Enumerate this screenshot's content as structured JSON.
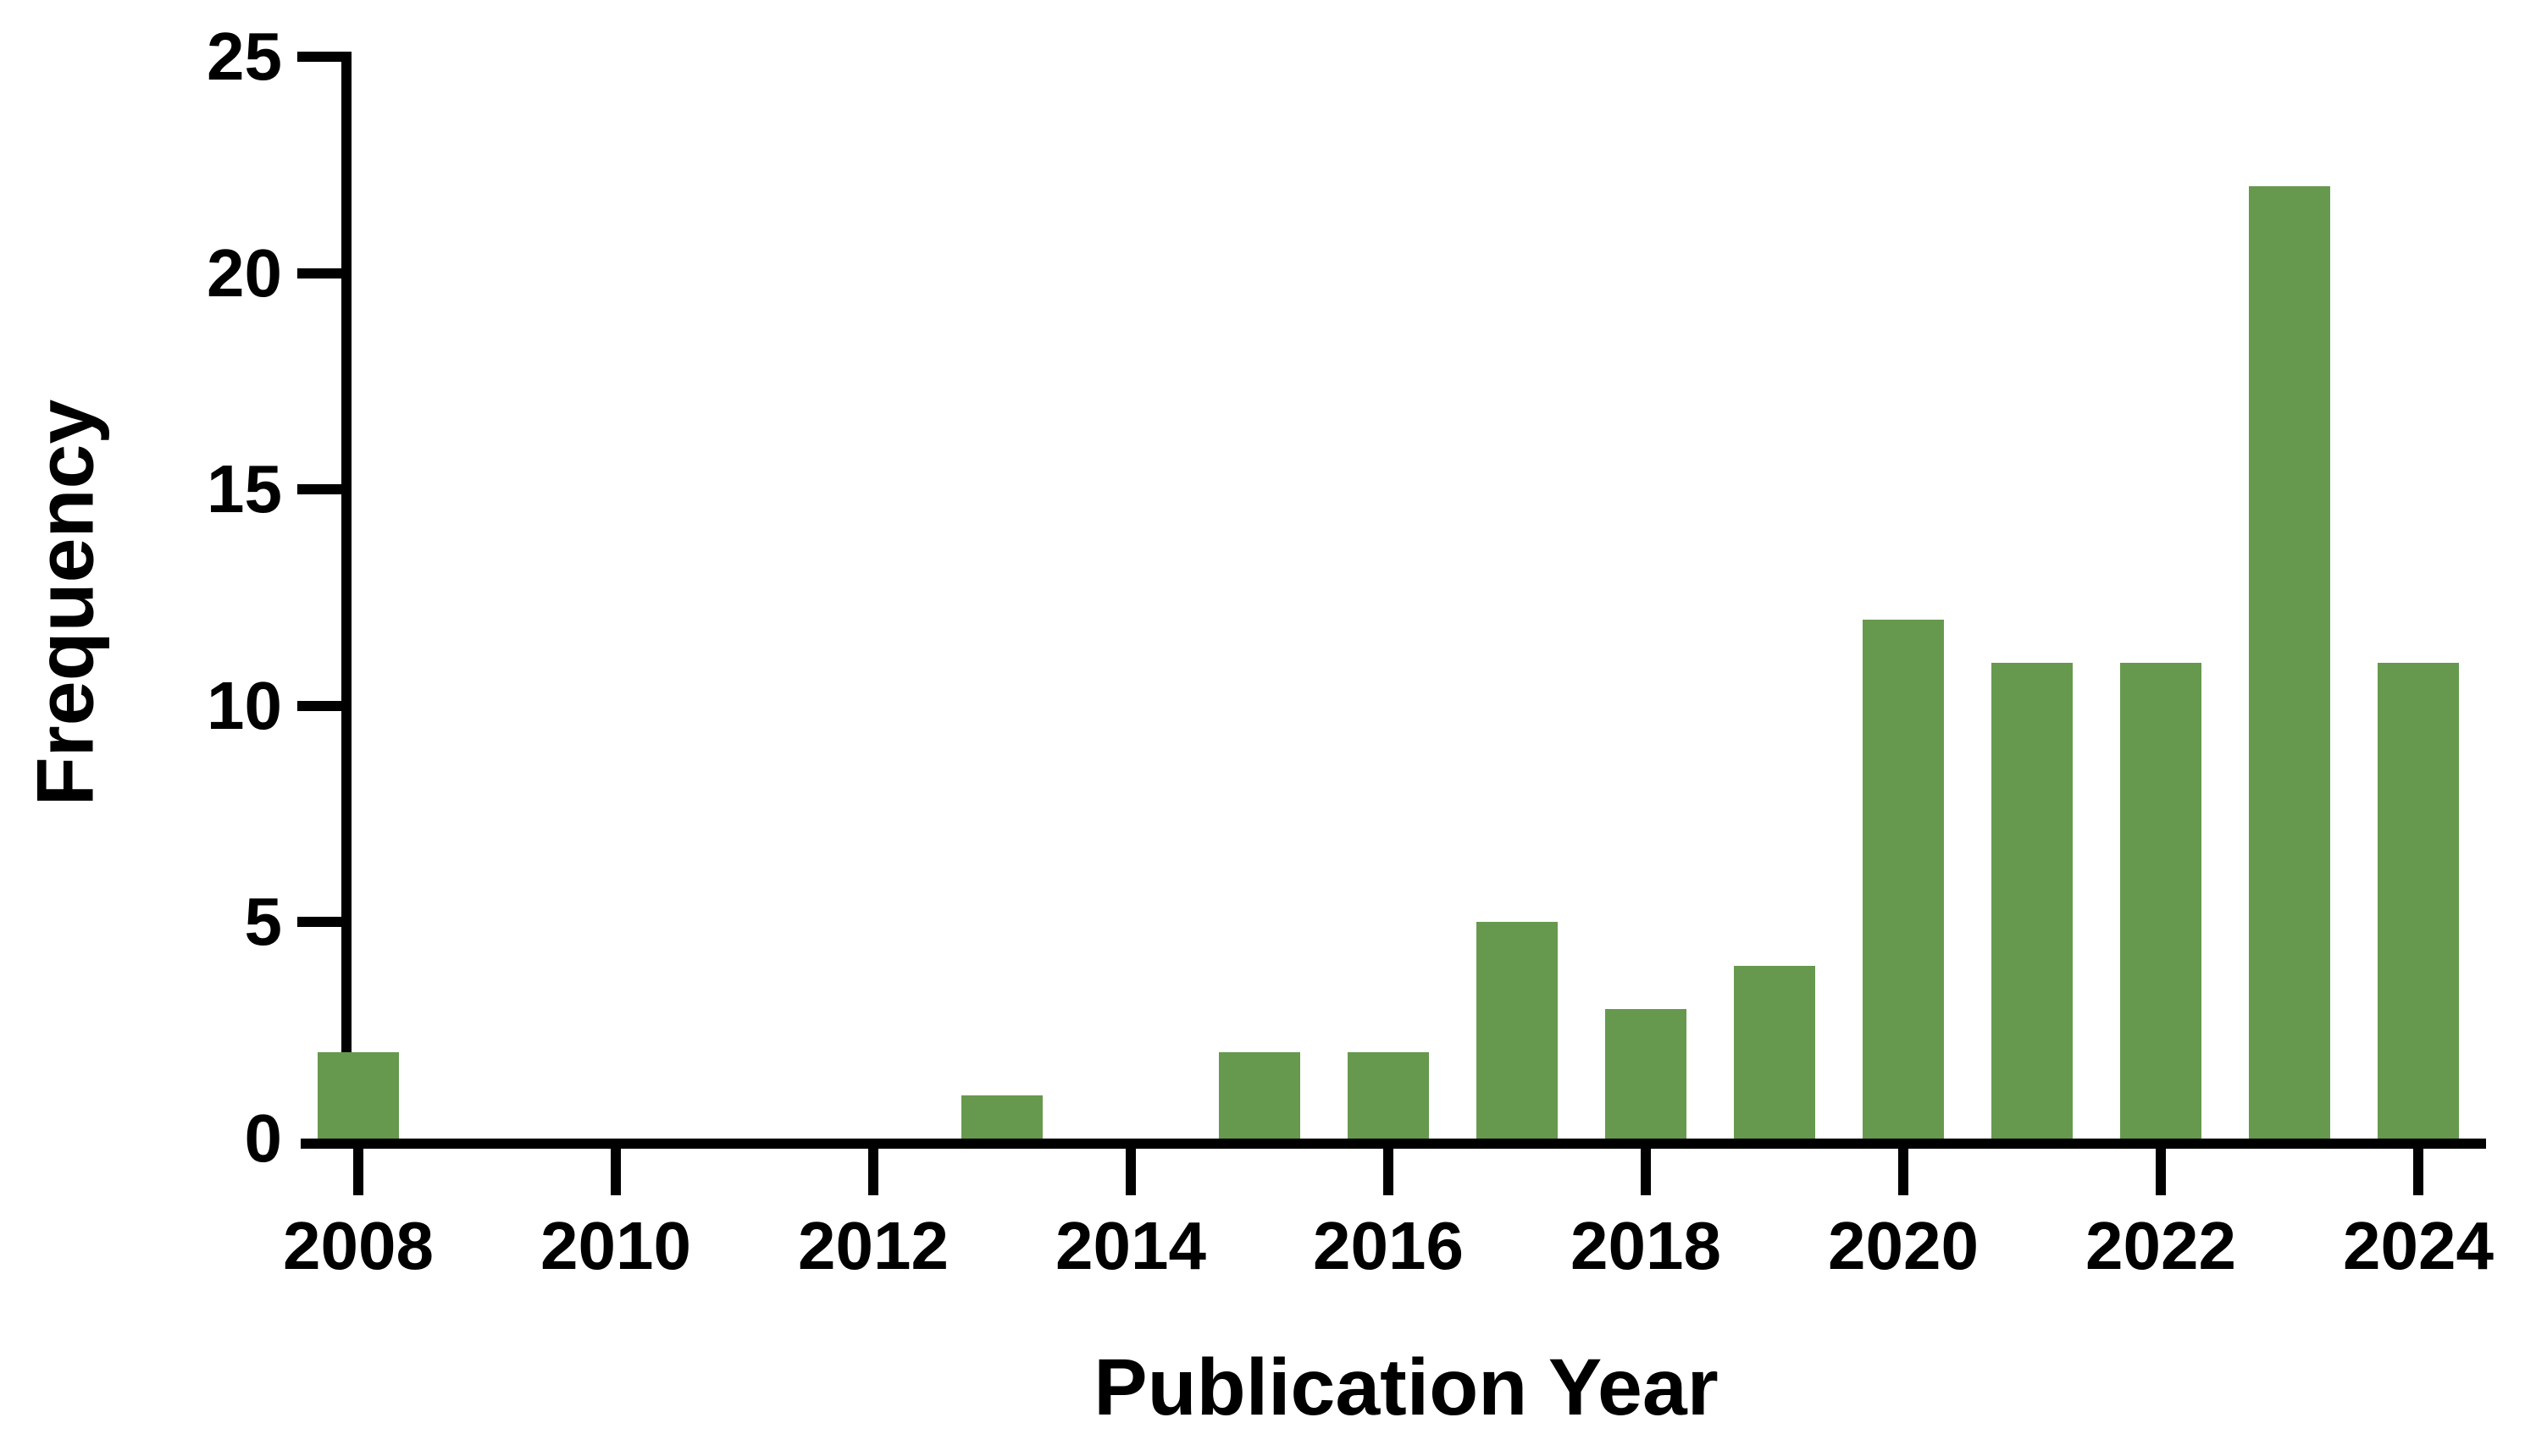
{
  "chart_data": {
    "type": "bar",
    "title": "",
    "xlabel": "Publication Year",
    "ylabel": "Frequency",
    "categories": [
      2008,
      2009,
      2010,
      2011,
      2012,
      2013,
      2014,
      2015,
      2016,
      2017,
      2018,
      2019,
      2020,
      2021,
      2022,
      2023,
      2024
    ],
    "values": [
      2,
      0,
      0,
      0,
      0,
      1,
      0,
      2,
      2,
      5,
      3,
      4,
      12,
      11,
      11,
      22,
      11
    ],
    "x_tick_labels": [
      "2008",
      "2010",
      "2012",
      "2014",
      "2016",
      "2018",
      "2020",
      "2022",
      "2024"
    ],
    "x_tick_years": [
      2008,
      2010,
      2012,
      2014,
      2016,
      2018,
      2020,
      2022,
      2024
    ],
    "y_tick_labels": [
      "0",
      "5",
      "10",
      "15",
      "20",
      "25"
    ],
    "y_ticks": [
      0,
      5,
      10,
      15,
      20,
      25
    ],
    "ylim": [
      0,
      25
    ],
    "xlim_years": [
      2007.5,
      2024.5
    ],
    "bar_color": "#66994e",
    "axis_color": "#000000",
    "background_color": "#ffffff",
    "grid": false,
    "legend": null
  }
}
